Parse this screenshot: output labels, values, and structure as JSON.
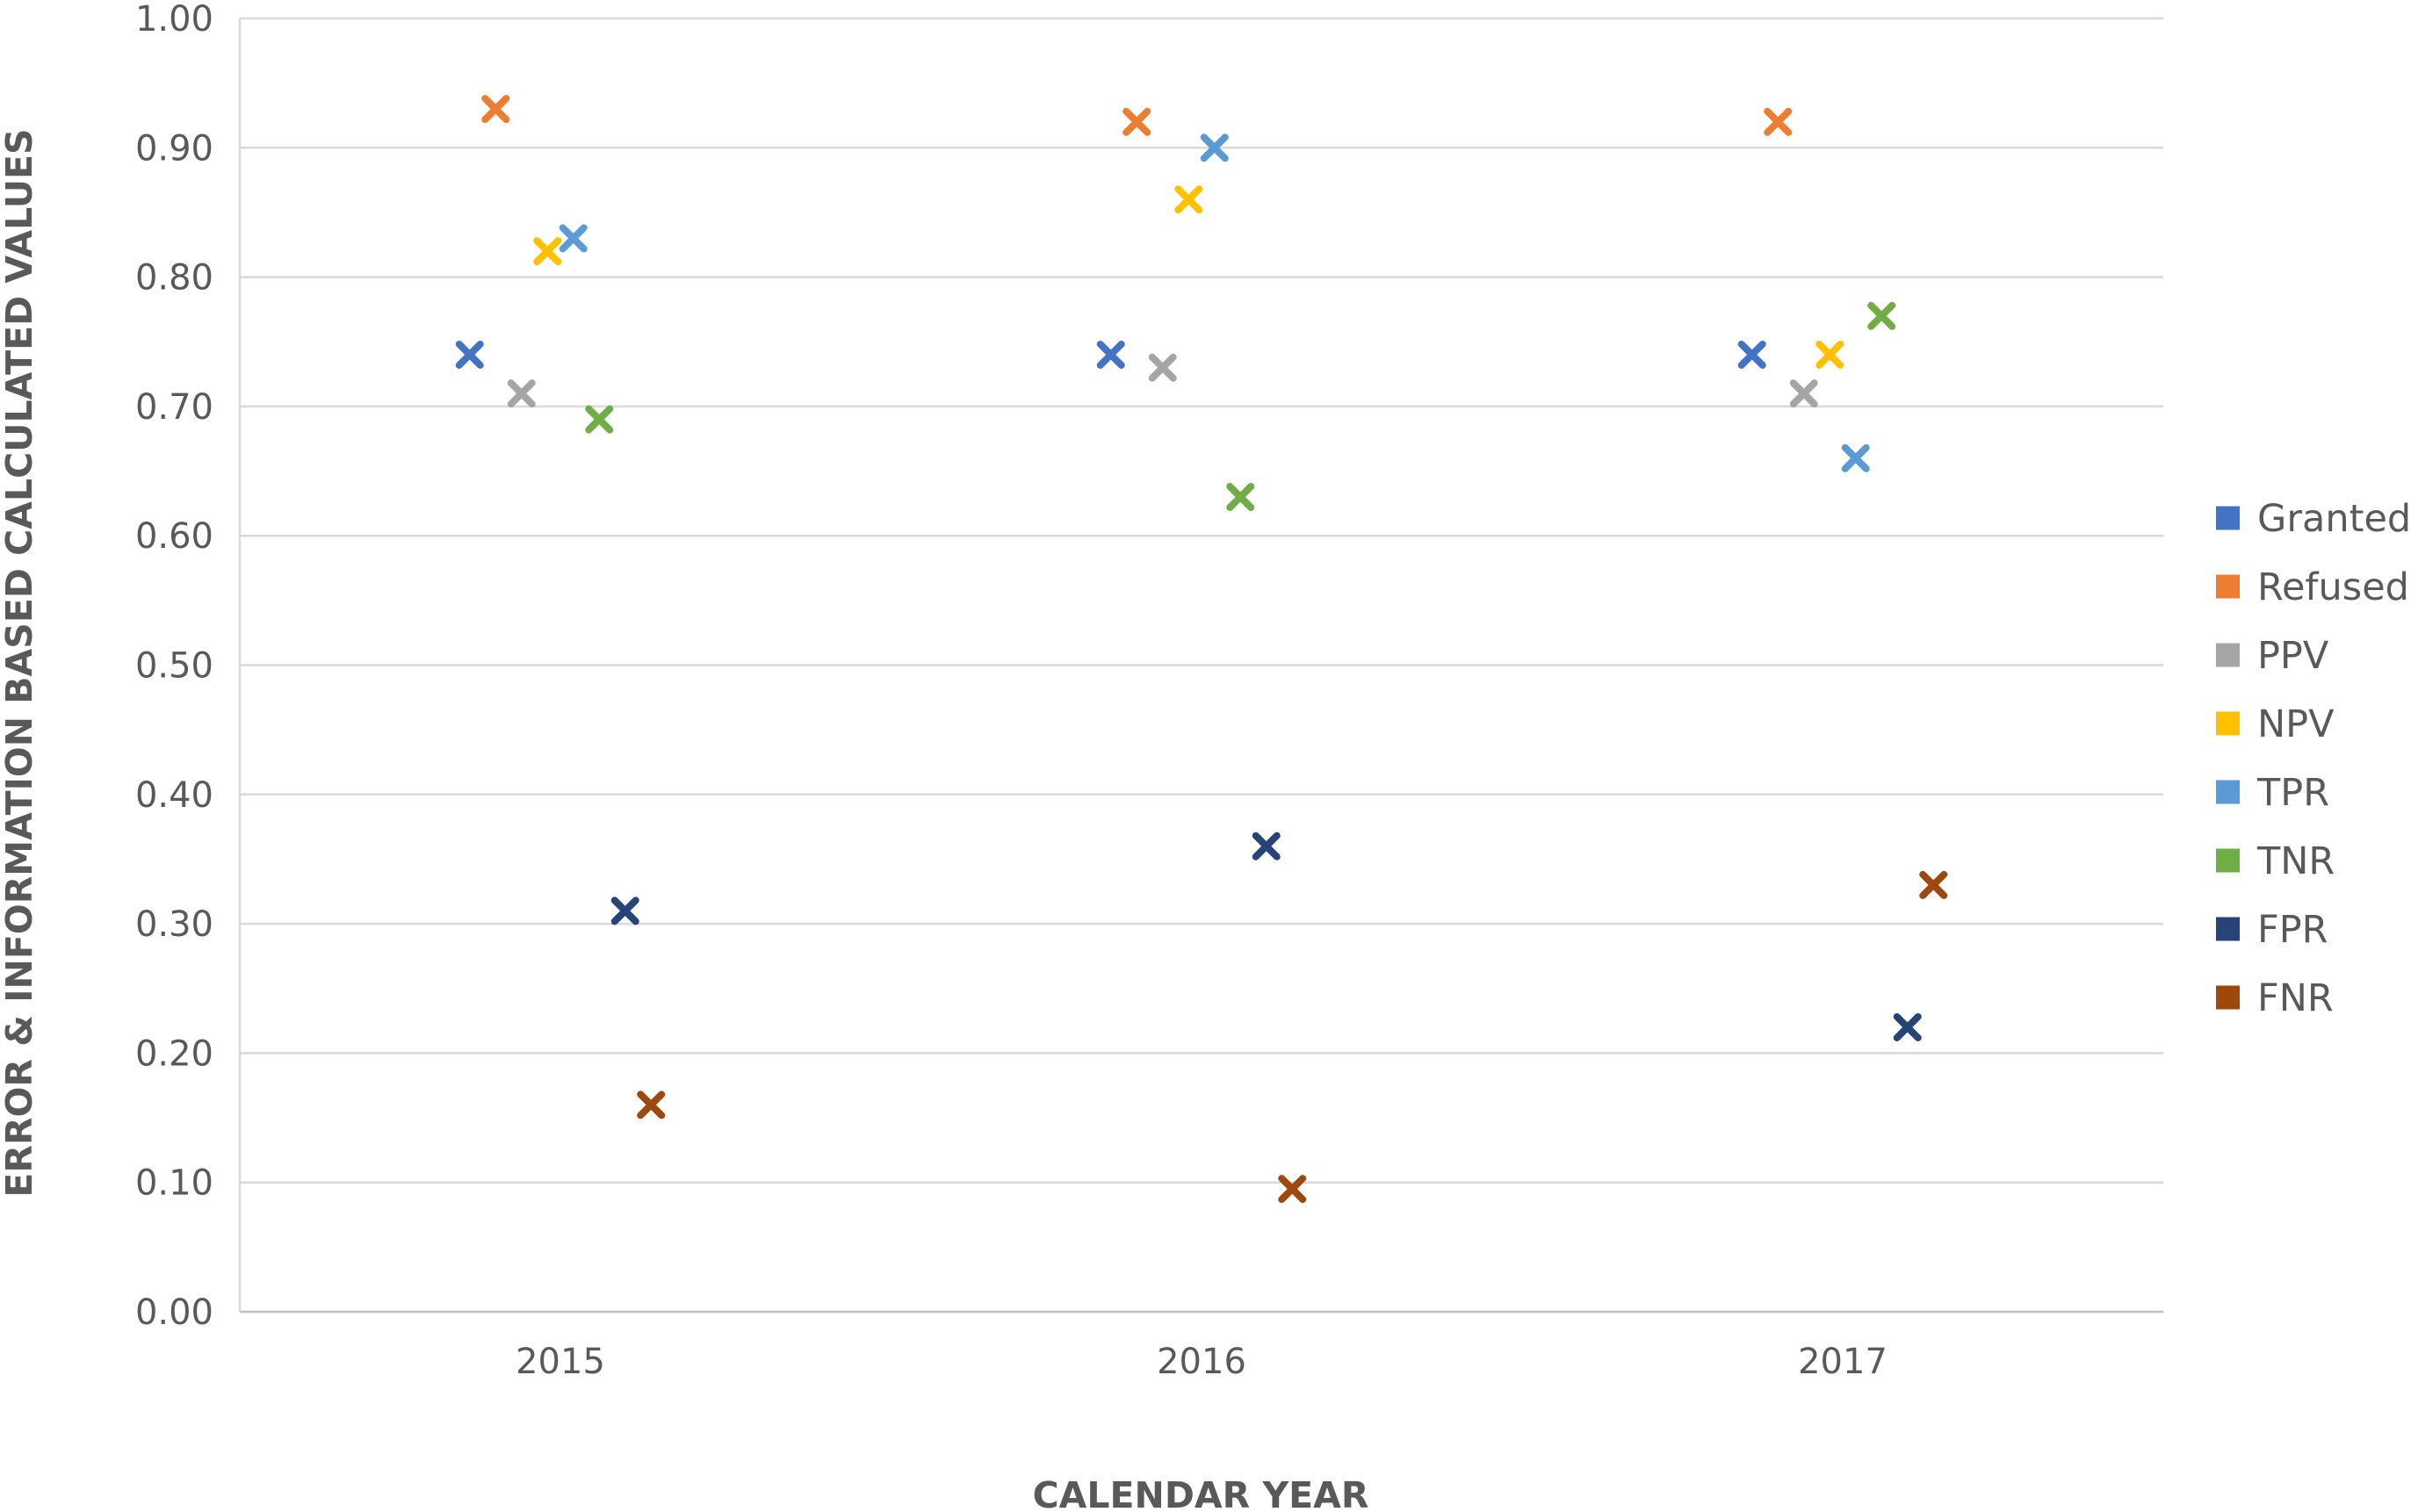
{
  "chart_data": {
    "type": "scatter",
    "title": "",
    "xlabel": "CALENDAR YEAR",
    "ylabel": "ERROR & INFORMATION BASED CALCULATED VALUES",
    "categories": [
      "2015",
      "2016",
      "2017"
    ],
    "ylim": [
      0,
      1
    ],
    "y_ticks": [
      "0.00",
      "0.10",
      "0.20",
      "0.30",
      "0.40",
      "0.50",
      "0.60",
      "0.70",
      "0.80",
      "0.90",
      "1.00"
    ],
    "grid": true,
    "legend_position": "right",
    "marker": "x",
    "series": [
      {
        "name": "Granted",
        "color": "#4472C4",
        "values": [
          0.74,
          0.74,
          0.74
        ]
      },
      {
        "name": "Refused",
        "color": "#ED7D31",
        "values": [
          0.93,
          0.92,
          0.92
        ]
      },
      {
        "name": "PPV",
        "color": "#A5A5A5",
        "values": [
          0.71,
          0.73,
          0.71
        ]
      },
      {
        "name": "NPV",
        "color": "#FFC000",
        "values": [
          0.82,
          0.86,
          0.74
        ]
      },
      {
        "name": "TPR",
        "color": "#5B9BD5",
        "values": [
          0.83,
          0.9,
          0.66
        ]
      },
      {
        "name": "TNR",
        "color": "#70AD47",
        "values": [
          0.69,
          0.63,
          0.77
        ]
      },
      {
        "name": "FPR",
        "color": "#264478",
        "values": [
          0.31,
          0.36,
          0.22
        ]
      },
      {
        "name": "FNR",
        "color": "#9E480E",
        "values": [
          0.16,
          0.095,
          0.33
        ]
      }
    ]
  }
}
